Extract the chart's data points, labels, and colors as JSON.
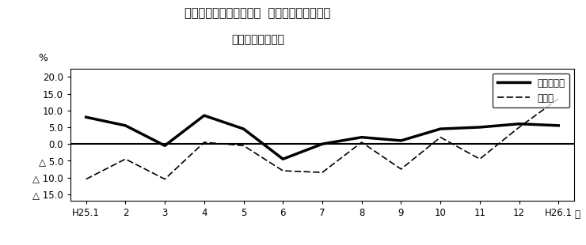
{
  "title_line1": "第２図　所定外労働時間  対前年同月比の推移",
  "title_line2": "（規模５人以上）",
  "xlabel_suffix": "月",
  "ylabel": "%",
  "xlabels": [
    "H25.1",
    "2",
    "3",
    "4",
    "5",
    "6",
    "7",
    "8",
    "9",
    "10",
    "11",
    "12",
    "H26.1"
  ],
  "series_all": [
    8.0,
    5.5,
    -0.5,
    8.5,
    4.5,
    -4.5,
    0.0,
    2.0,
    1.0,
    4.5,
    5.0,
    6.0,
    5.5
  ],
  "series_mfg": [
    -10.5,
    -4.5,
    -10.5,
    0.5,
    -0.5,
    -8.0,
    -8.5,
    0.5,
    -7.5,
    2.0,
    -4.5,
    5.0,
    13.5
  ],
  "ylim": [
    -17.0,
    22.5
  ],
  "yticks": [
    -15.0,
    -10.0,
    -5.0,
    0.0,
    5.0,
    10.0,
    15.0,
    20.0
  ],
  "legend_all": "調査産業計",
  "legend_mfg": "製造業",
  "line_color": "#000000",
  "bg_color": "#ffffff",
  "title_fontsize": 10.5,
  "tick_fontsize": 8.5,
  "legend_fontsize": 8.5
}
